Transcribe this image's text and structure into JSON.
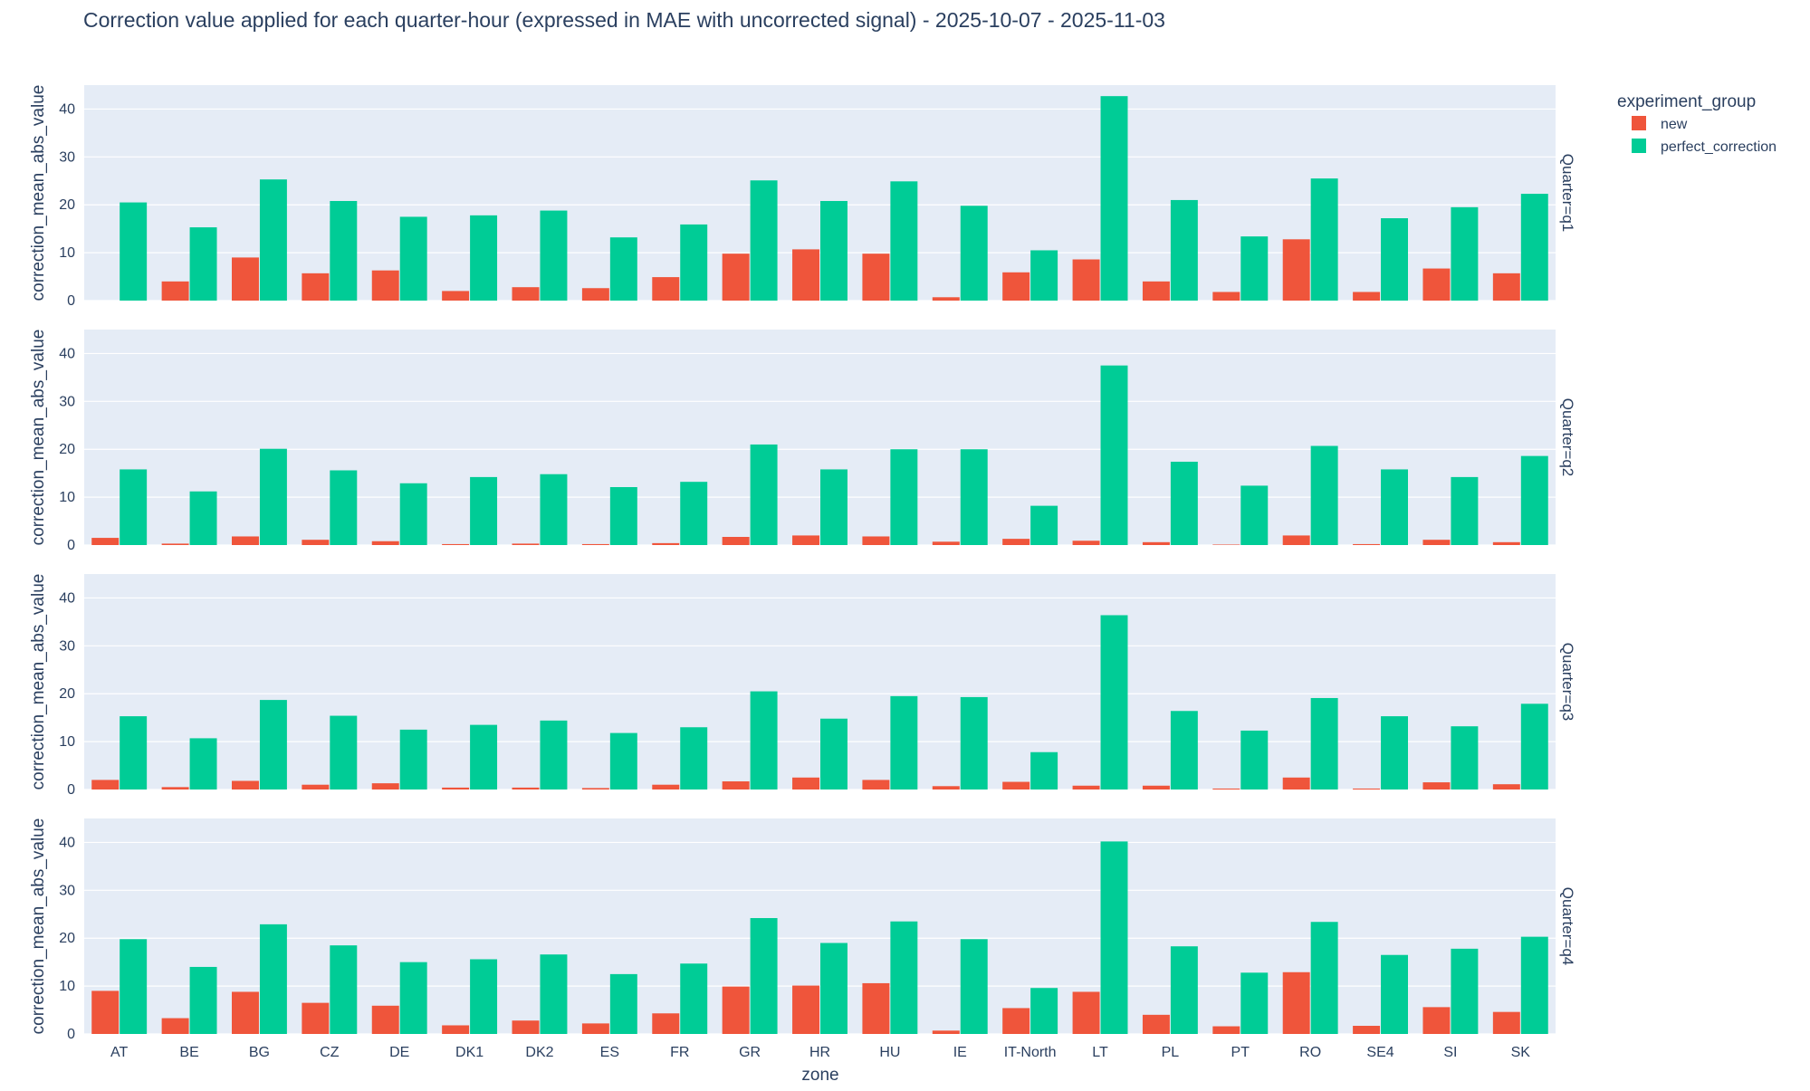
{
  "chart_data": {
    "type": "bar",
    "title": "Correction value applied for each quarter-hour (expressed in MAE with uncorrected signal) - 2025-10-07 - 2025-11-03",
    "xlabel": "zone",
    "ylabel": "correction_mean_abs_value",
    "ylim": [
      0,
      45
    ],
    "yticks": [
      0,
      10,
      20,
      30,
      40
    ],
    "grid": true,
    "legend": {
      "title": "experiment_group",
      "placement": "top-right"
    },
    "categories": [
      "AT",
      "BE",
      "BG",
      "CZ",
      "DE",
      "DK1",
      "DK2",
      "ES",
      "FR",
      "GR",
      "HR",
      "HU",
      "IE",
      "IT-North",
      "LT",
      "PL",
      "PT",
      "RO",
      "SE4",
      "SI",
      "SK"
    ],
    "series_names": [
      "new",
      "perfect_correction"
    ],
    "series_colors": [
      "#EF553B",
      "#00CC96"
    ],
    "panels": [
      {
        "label": "Quarter=q1",
        "series": [
          {
            "name": "new",
            "values": [
              0,
              4.0,
              9.0,
              5.7,
              6.3,
              2.0,
              2.8,
              2.6,
              4.9,
              9.8,
              10.7,
              9.8,
              0.7,
              5.9,
              8.6,
              4.0,
              1.8,
              12.8,
              1.8,
              6.7,
              5.7
            ]
          },
          {
            "name": "perfect_correction",
            "values": [
              20.5,
              15.3,
              25.3,
              20.8,
              17.5,
              17.8,
              18.8,
              13.2,
              15.9,
              25.1,
              20.8,
              24.9,
              19.8,
              10.5,
              42.7,
              21.0,
              13.4,
              25.5,
              17.2,
              19.5,
              22.3
            ]
          }
        ]
      },
      {
        "label": "Quarter=q2",
        "series": [
          {
            "name": "new",
            "values": [
              1.5,
              0.3,
              1.8,
              1.1,
              0.8,
              0.2,
              0.3,
              0.2,
              0.4,
              1.7,
              2.0,
              1.8,
              0.7,
              1.3,
              0.9,
              0.6,
              0.1,
              2.0,
              0.2,
              1.1,
              0.6
            ]
          },
          {
            "name": "perfect_correction",
            "values": [
              15.8,
              11.2,
              20.1,
              15.6,
              12.9,
              14.2,
              14.8,
              12.1,
              13.2,
              21.0,
              15.8,
              20.0,
              20.0,
              8.2,
              37.5,
              17.4,
              12.4,
              20.7,
              15.8,
              14.2,
              18.6
            ]
          }
        ]
      },
      {
        "label": "Quarter=q3",
        "series": [
          {
            "name": "new",
            "values": [
              2.0,
              0.5,
              1.8,
              1.0,
              1.3,
              0.4,
              0.4,
              0.3,
              1.0,
              1.7,
              2.5,
              2.0,
              0.7,
              1.6,
              0.8,
              0.8,
              0.2,
              2.5,
              0.2,
              1.5,
              1.1
            ]
          },
          {
            "name": "perfect_correction",
            "values": [
              15.3,
              10.7,
              18.7,
              15.4,
              12.5,
              13.5,
              14.4,
              11.8,
              13.0,
              20.5,
              14.8,
              19.5,
              19.3,
              7.8,
              36.4,
              16.4,
              12.3,
              19.1,
              15.3,
              13.2,
              17.9
            ]
          }
        ]
      },
      {
        "label": "Quarter=q4",
        "series": [
          {
            "name": "new",
            "values": [
              9.0,
              3.3,
              8.8,
              6.5,
              5.9,
              1.8,
              2.8,
              2.2,
              4.3,
              9.9,
              10.1,
              10.6,
              0.7,
              5.4,
              8.8,
              4.0,
              1.6,
              12.9,
              1.7,
              5.6,
              4.6
            ]
          },
          {
            "name": "perfect_correction",
            "values": [
              19.8,
              14.0,
              22.9,
              18.5,
              15.0,
              15.6,
              16.6,
              12.5,
              14.7,
              24.2,
              19.0,
              23.5,
              19.8,
              9.6,
              40.2,
              18.3,
              12.8,
              23.4,
              16.5,
              17.8,
              20.3
            ]
          }
        ]
      }
    ]
  }
}
